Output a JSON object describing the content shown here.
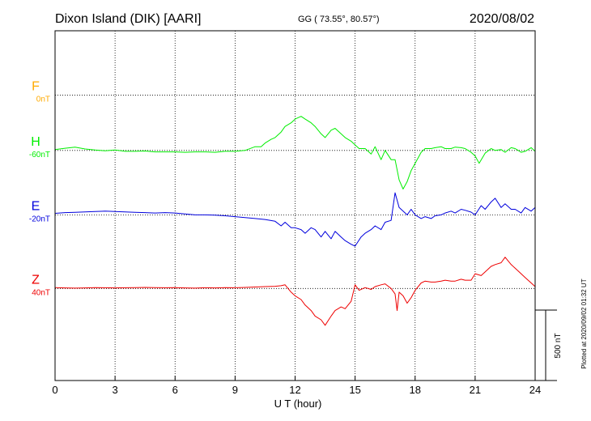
{
  "header": {
    "station": "Dixon Island (DIK)  [AARI]",
    "coords": "GG ( 73.55°,  80.57°)",
    "date": "2020/08/02"
  },
  "plotted_note": "Plotted at 2020/09/02 01:32 UT",
  "scale_label": "500 nT",
  "colors": {
    "F": "#ffaa00",
    "H": "#00ee00",
    "E": "#0000dd",
    "Z": "#ee0000",
    "axis": "#000000",
    "grid": "#000000"
  },
  "chart_data": {
    "type": "line",
    "xlabel": "U T (hour)",
    "xlim": [
      0,
      24
    ],
    "xticks": [
      0,
      3,
      6,
      9,
      12,
      15,
      18,
      21,
      24
    ],
    "ylim": [
      -500,
      1400
    ],
    "channels": [
      {
        "name": "F",
        "offset": "0nT",
        "baseline": 1050,
        "x": [],
        "y": []
      },
      {
        "name": "H",
        "offset": "-60nT",
        "baseline": 750,
        "x": [
          0,
          0.5,
          1,
          1.5,
          2,
          2.5,
          3,
          3.5,
          4,
          4.5,
          5,
          5.5,
          6,
          6.5,
          7,
          7.5,
          8,
          8.5,
          9,
          9.5,
          10,
          10.3,
          10.5,
          10.8,
          11,
          11.3,
          11.5,
          11.8,
          12,
          12.3,
          12.5,
          12.8,
          13,
          13.3,
          13.5,
          13.8,
          14,
          14.3,
          14.5,
          14.8,
          15,
          15.2,
          15.5,
          15.8,
          16,
          16.3,
          16.5,
          16.8,
          17,
          17.2,
          17.4,
          17.6,
          17.8,
          18,
          18.3,
          18.5,
          18.8,
          19,
          19.3,
          19.5,
          19.8,
          20,
          20.3,
          20.5,
          20.8,
          21,
          21.2,
          21.5,
          21.8,
          22,
          22.3,
          22.5,
          22.8,
          23,
          23.3,
          23.5,
          23.8,
          24
        ],
        "y": [
          755,
          762,
          768,
          758,
          752,
          748,
          752,
          745,
          745,
          747,
          742,
          742,
          742,
          740,
          742,
          742,
          740,
          745,
          745,
          750,
          770,
          770,
          790,
          810,
          820,
          850,
          880,
          900,
          920,
          935,
          920,
          900,
          880,
          840,
          820,
          860,
          870,
          840,
          820,
          800,
          780,
          760,
          760,
          730,
          770,
          700,
          750,
          700,
          700,
          590,
          540,
          580,
          640,
          680,
          740,
          760,
          760,
          765,
          770,
          760,
          760,
          768,
          765,
          760,
          740,
          720,
          680,
          735,
          760,
          750,
          755,
          740,
          765,
          760,
          740,
          745,
          765,
          745
        ]
      },
      {
        "name": "E",
        "offset": "-20nT",
        "baseline": 400,
        "x": [
          0,
          0.5,
          1,
          1.5,
          2,
          2.5,
          3,
          3.5,
          4,
          4.5,
          5,
          5.5,
          6,
          6.5,
          7,
          7.5,
          8,
          8.5,
          9,
          9.5,
          10,
          10.5,
          11,
          11.3,
          11.5,
          11.8,
          12,
          12.3,
          12.5,
          12.8,
          13,
          13.3,
          13.5,
          13.8,
          14,
          14.3,
          14.5,
          14.8,
          15,
          15.3,
          15.5,
          15.8,
          16,
          16.3,
          16.5,
          16.8,
          17,
          17.2,
          17.4,
          17.6,
          17.8,
          18,
          18.3,
          18.5,
          18.8,
          19,
          19.3,
          19.5,
          19.8,
          20,
          20.3,
          20.5,
          20.8,
          21,
          21.3,
          21.5,
          21.8,
          22,
          22.3,
          22.5,
          22.8,
          23,
          23.3,
          23.5,
          23.8,
          24
        ],
        "y": [
          408,
          412,
          414,
          416,
          418,
          420,
          418,
          416,
          414,
          412,
          410,
          412,
          410,
          405,
          400,
          400,
          398,
          395,
          390,
          385,
          380,
          375,
          365,
          340,
          360,
          330,
          330,
          320,
          300,
          330,
          320,
          280,
          310,
          270,
          310,
          280,
          260,
          240,
          230,
          280,
          300,
          320,
          340,
          320,
          360,
          370,
          520,
          440,
          420,
          400,
          430,
          400,
          380,
          390,
          380,
          395,
          400,
          410,
          420,
          410,
          430,
          425,
          415,
          400,
          450,
          430,
          470,
          490,
          440,
          460,
          430,
          430,
          410,
          440,
          420,
          440
        ]
      },
      {
        "name": "Z",
        "offset": "40nT",
        "baseline": 0,
        "x": [
          0,
          0.5,
          1,
          1.5,
          2,
          2.5,
          3,
          3.5,
          4,
          4.5,
          5,
          5.5,
          6,
          6.5,
          7,
          7.5,
          8,
          8.5,
          9,
          9.5,
          10,
          10.5,
          11,
          11.3,
          11.5,
          11.8,
          12,
          12.3,
          12.5,
          12.8,
          13,
          13.3,
          13.5,
          13.8,
          14,
          14.3,
          14.5,
          14.8,
          15,
          15.2,
          15.5,
          15.8,
          16,
          16.3,
          16.5,
          16.8,
          17,
          17.1,
          17.2,
          17.4,
          17.6,
          17.8,
          18,
          18.3,
          18.5,
          18.8,
          19,
          19.3,
          19.5,
          19.8,
          20,
          20.3,
          20.5,
          20.8,
          21,
          21.3,
          21.5,
          21.8,
          22,
          22.3,
          22.5,
          22.8,
          23,
          23.3,
          23.5,
          23.8,
          24
        ],
        "y": [
          5,
          3,
          2,
          3,
          5,
          4,
          3,
          4,
          5,
          6,
          5,
          4,
          5,
          3,
          2,
          4,
          3,
          5,
          4,
          6,
          8,
          10,
          12,
          15,
          20,
          -20,
          -40,
          -60,
          -90,
          -120,
          -150,
          -170,
          -200,
          -150,
          -120,
          -100,
          -110,
          -70,
          20,
          -10,
          5,
          -5,
          10,
          20,
          25,
          0,
          -30,
          -120,
          -20,
          -40,
          -80,
          -50,
          -10,
          30,
          40,
          35,
          35,
          40,
          45,
          40,
          40,
          50,
          45,
          45,
          80,
          70,
          90,
          120,
          130,
          140,
          170,
          130,
          110,
          80,
          60,
          30,
          10
        ]
      }
    ]
  }
}
